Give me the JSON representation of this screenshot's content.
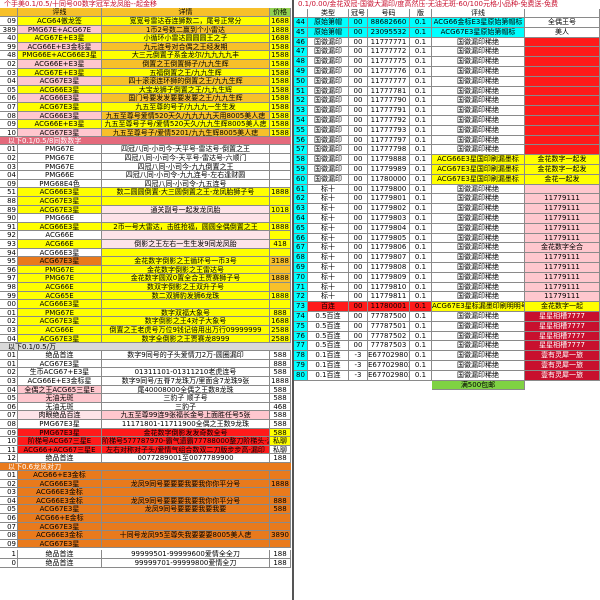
{
  "colors": {
    "yellow": "#ffff00",
    "gold": "#f7c02a",
    "orange": "#e97a1c",
    "pink": "#ffc7ce",
    "rose": "#e46a7c",
    "red": "#ff1a1a",
    "darkred": "#c8102e",
    "green": "#7fd243",
    "header_green": "#92d050",
    "cyan": "#00ffff",
    "blue": "#5b9bd5",
    "gray": "#d9d9d9",
    "white": "#ffffff",
    "pale_pink": "#fde3e8",
    "light_orange": "#f9cb9c"
  },
  "left": {
    "title": "个手美0.1/0.5/十同号00数字冠军龙凤胎--起金移",
    "header": {
      "id": "",
      "name": "评线",
      "desc": "详情",
      "price": "价格"
    },
    "rows": [
      [
        "09",
        "ACG64傲龙签",
        "宽宽号雷达吞连狮数二，尾号正常分",
        "1688"
      ],
      [
        "389",
        "PMG67E+ACG67E",
        "1币2号数二赢到个小雷达",
        "1888"
      ],
      [
        "40",
        "ACG67E+E3星",
        "小循环小雷达圆圆圆王之子",
        "1688"
      ],
      [
        "99",
        "ACG66E+E3金标星",
        "九元连号对合偶之王经发期",
        "1588"
      ],
      [
        "48",
        "PMG66E+ACG66E3星",
        "大三元倒置子系金龙尔/九九九九丰",
        "1588"
      ],
      [
        "02",
        "ACG66E+E3星",
        "倒置之王倒置狮子/九九生辉",
        "1588"
      ],
      [
        "03",
        "ACG67E+E3星",
        "五福倒置之王/九九生辉",
        "1588"
      ],
      [
        "04",
        "ACG67E3星",
        "四十滚滚连环狮的倒置之王/九九生辉",
        "1588"
      ],
      [
        "05",
        "ACG66E3星",
        "大宝龙狮子倒置之王/九九生辉",
        "1588"
      ],
      [
        "06",
        "ACG66E3星",
        "国门号要发发要要发要之王/九九生辉",
        "1588"
      ],
      [
        "07",
        "ACG67E3星",
        "九五至尊的号子/九九九一生生发",
        "1588"
      ],
      [
        "08",
        "ACG66E3星",
        "九五至尊号爱情520天久/九九九九天用8005美人痣",
        "1588"
      ],
      [
        "09",
        "ACG66E+E3星",
        "九五至尊号子号/爱情520天久/九九生辉8005美人痣",
        "1588"
      ],
      [
        "10",
        "ACG67E3星",
        "九五至尊号子/爱情5201/九九生辉8005美人痣",
        "1588"
      ]
    ],
    "section1": "以下0.1/0.5/8同数数字",
    "rows2": [
      [
        "01",
        "PMG67E",
        "四冠八同-小司今-天平号-雷达号-倒置之王",
        ""
      ],
      [
        "02",
        "PMG67E",
        "四冠八同-小司今-天平号-雷达号-六顺门",
        ""
      ],
      [
        "03",
        "PMG67E",
        "四冠八同-小司今-九九倒置之王",
        ""
      ],
      [
        "04",
        "PMG66E",
        "四冠八同-小司令-九九连号-左右逢财圆",
        ""
      ],
      [
        "09",
        "PMG68E4色",
        "四冠八同-小司令-九五连号",
        ""
      ],
      [
        "51",
        "ACG66E3星",
        "数二圆圆倒置·大三圆倒置之王-龙凤胎狮子号",
        "1888"
      ],
      [
        "88",
        "ACG67E3星",
        "",
        ""
      ],
      [
        "89",
        "ACG67E3星",
        "通关副号一起发龙凤胎",
        "1018"
      ],
      [
        "90",
        "PMG66E",
        "",
        ""
      ],
      [
        "91",
        "ACG66E3星",
        "2币一号大雷达，击胜抢福，圆圆全偶倒置之王",
        "1888"
      ],
      [
        "92",
        "ACG66E",
        "",
        ""
      ],
      [
        "93",
        "ACG66E",
        "倒影之王左右一生生发9同龙凤胎",
        "418"
      ],
      [
        "94",
        "ACG66E3星",
        "",
        ""
      ],
      [
        "95",
        "ACG67E3星",
        "金花数字倒影之王循环号一币3号",
        "3188"
      ],
      [
        "96",
        "PMG67E",
        "金花数字倒影之王雷达号",
        ""
      ],
      [
        "97",
        "PMG67E",
        "金花数字圆双0置全合王贾赛狮子号",
        "1888"
      ],
      [
        "98",
        "ACG66E",
        "数双字倒影之王双升子号",
        ""
      ],
      [
        "99",
        "ACG65E",
        "数二双狮豹发狮6龙珠",
        "1888"
      ],
      [
        "00",
        "ACG66E3星",
        "",
        ""
      ],
      [
        "01",
        "PMG67E",
        "数字双福大象号",
        "888"
      ],
      [
        "02",
        "ACG67E3星",
        "数字倒影之王4对子大象号",
        "1688"
      ],
      [
        "03",
        "ACG66E",
        "倒置之王老虎号万位9钱记倍用出万行09999999",
        "2588"
      ],
      [
        "04",
        "ACG67E3星",
        "数字全倒影之王贾赛龙8999",
        "2588"
      ]
    ],
    "section2": "以下0.1/0.5/万",
    "rows3": [
      [
        "01",
        "绝品首连",
        "数字9同号的子头爱情刀2万-圆圈漏印",
        "588"
      ],
      [
        "01",
        "ACG67E3星",
        "",
        "888"
      ],
      [
        "02",
        "生币ACG67+E3星",
        "01311101-01311210老虎连号",
        "588"
      ],
      [
        "03",
        "ACG66E+E3金标星",
        "数字9同号/五脊7龙珠万/里面含7龙珠9张",
        "1888"
      ],
      [
        "04",
        "全偶之王ACG65三星E",
        "尾40008000全偶之王数8龙珠",
        "588"
      ],
      [
        "05",
        "无油无斑",
        "三豹子  顺子号",
        "588"
      ],
      [
        "06",
        "无油无斑",
        "三豹子",
        "468"
      ],
      [
        "07",
        "肉眼绝品百连",
        "九五至尊99连9张福长金号上面胜任号5张",
        "588"
      ],
      [
        "08",
        "PMG67E3星",
        "11171801-11711900全偶之王数9龙珠",
        "588"
      ],
      [
        "09",
        "PMG67E3星",
        "金花数字倒影发发奇数全号",
        "588"
      ],
      [
        "10",
        "阶梯号ACG67三星E",
        "阶梯号577787970-霸气遗霸77788000整刀阶梯头-漏印",
        "私聊"
      ],
      [
        "11",
        "ACG66+ACG67三星E",
        "左右对称对子头/爱情气组合数双二刀版步步高-漏印",
        "私聊"
      ],
      [
        "12",
        "绝品首连",
        "0077289001至0077789900",
        "188"
      ]
    ],
    "section3": "以下0.6龙凤对刀",
    "rows4": [
      [
        "01",
        "ACG66+E3金标",
        "",
        ""
      ],
      [
        "02",
        "ACG66E3星",
        "龙凤9同号要要要我要我你你平分号",
        "1888"
      ],
      [
        "03",
        "ACG66E3金标",
        "",
        ""
      ],
      [
        "04",
        "ACG66E3金标",
        "龙凤9同号要要要我要我你你平分号",
        "888"
      ],
      [
        "05",
        "ACG67E3星",
        "龙凤9同号要要要我要我要",
        "588"
      ],
      [
        "06",
        "ACG66+E金标",
        "",
        ""
      ],
      [
        "07",
        "ACG67E3星",
        "",
        ""
      ],
      [
        "08",
        "ACG66E3金标",
        "十同号龙凤95至尊失我要要要8005美人痣",
        "3890"
      ],
      [
        "09",
        "ACG67E3星",
        "",
        ""
      ]
    ],
    "footer": [
      [
        "1",
        "绝品首连",
        "99999501-99999600爱情全全刀",
        "188"
      ],
      [
        "0",
        "绝品首连",
        "99999701-99999800爱情全刀",
        "188"
      ]
    ]
  },
  "right": {
    "banner": "0.1/0.00/金花双冠-国徽大漏印/度高然压-无油无斑-60/100元格小品种-免费送-免费",
    "header": {
      "n": "",
      "type": "类型",
      "count": "冠号",
      "serial": "号码",
      "ver": "版",
      "rating": "评线",
      "note": ""
    },
    "rows": [
      [
        "44",
        "原始第帽",
        "00",
        "88682660",
        "0.1",
        "ACG66金标E3星原始第帽标",
        "全偶王号"
      ],
      [
        "45",
        "原始第帽",
        "00",
        "23095532",
        "0.1",
        "ACG67E3星原始第帽标",
        "美人"
      ],
      [
        "46",
        "国徽漏印",
        "00",
        "11777771",
        "0.1",
        "国徽漏印稀绝",
        ""
      ],
      [
        "47",
        "国徽漏印",
        "00",
        "11777772",
        "0.1",
        "国徽漏印稀绝",
        ""
      ],
      [
        "48",
        "国徽漏印",
        "00",
        "11777775",
        "0.1",
        "国徽漏印稀绝",
        ""
      ],
      [
        "49",
        "国徽漏印",
        "00",
        "11777776",
        "0.1",
        "国徽漏印稀绝",
        ""
      ],
      [
        "50",
        "国徽漏印",
        "00",
        "11777777",
        "0.1",
        "国徽漏印稀绝",
        ""
      ],
      [
        "51",
        "国徽漏印",
        "00",
        "11777781",
        "0.1",
        "国徽漏印稀绝",
        ""
      ],
      [
        "52",
        "国徽漏印",
        "00",
        "11777790",
        "0.1",
        "国徽漏印稀绝",
        ""
      ],
      [
        "53",
        "国徽漏印",
        "00",
        "11777791",
        "0.1",
        "国徽漏印稀绝",
        ""
      ],
      [
        "54",
        "国徽漏印",
        "00",
        "11777792",
        "0.1",
        "国徽漏印稀绝",
        ""
      ],
      [
        "55",
        "国徽漏印",
        "00",
        "11777793",
        "0.1",
        "国徽漏印稀绝",
        ""
      ],
      [
        "56",
        "国徽漏印",
        "00",
        "11777797",
        "0.1",
        "国徽漏印稀绝",
        ""
      ],
      [
        "57",
        "国徽漏印",
        "00",
        "11777798",
        "0.1",
        "国徽漏印稀绝",
        ""
      ],
      [
        "58",
        "国徽漏印",
        "00",
        "11779888",
        "0.1",
        "ACG66E3星国印刷漏墨标",
        "金花数字一起发"
      ],
      [
        "59",
        "国徽漏印",
        "00",
        "11779989",
        "0.1",
        "ACG67E3星国印刷漏墨标",
        "金花数字一起发"
      ],
      [
        "60",
        "国徽漏印",
        "00",
        "11780000",
        "0.1",
        "ACG67E3星国印刷漏墨标",
        "金花一起发"
      ],
      [
        "61",
        "标十",
        "00",
        "11779800",
        "0.1",
        "国徽漏印稀绝",
        ""
      ],
      [
        "62",
        "标十",
        "00",
        "11779801",
        "0.1",
        "国徽漏印稀绝",
        "11779111"
      ],
      [
        "63",
        "标十",
        "00",
        "11779802",
        "0.1",
        "国徽漏印稀绝",
        "11779111"
      ],
      [
        "64",
        "标十",
        "00",
        "11779803",
        "0.1",
        "国徽漏印稀绝",
        "11779111"
      ],
      [
        "65",
        "标十",
        "00",
        "11779804",
        "0.1",
        "国徽漏印稀绝",
        "11779111"
      ],
      [
        "66",
        "标十",
        "00",
        "11779805",
        "0.1",
        "国徽漏印稀绝",
        "11779111"
      ],
      [
        "67",
        "标十",
        "00",
        "11779806",
        "0.1",
        "国徽漏印稀绝",
        "金花数字全合"
      ],
      [
        "68",
        "标十",
        "00",
        "11779807",
        "0.1",
        "国徽漏印稀绝",
        "11779111"
      ],
      [
        "69",
        "标十",
        "00",
        "11779808",
        "0.1",
        "国徽漏印稀绝",
        "11779111"
      ],
      [
        "70",
        "标十",
        "00",
        "11779809",
        "0.1",
        "国徽漏印稀绝",
        "11779111"
      ],
      [
        "71",
        "标十",
        "00",
        "11779810",
        "0.1",
        "国徽漏印稀绝",
        "11779111"
      ],
      [
        "72",
        "标十",
        "00",
        "11779811",
        "0.1",
        "国徽漏印稀绝",
        "11779111"
      ],
      [
        "73",
        "百连",
        "00",
        "11780001",
        "0.1",
        "ACG67E3星标漏墨印刷明明号",
        "金花数字一起"
      ],
      [
        "74",
        "0.5百连",
        "00",
        "77787500",
        "0.1",
        "国徽漏印稀绝",
        "星星相槽7777"
      ],
      [
        "75",
        "0.5百连",
        "00",
        "77787501",
        "0.1",
        "国徽漏印稀绝",
        "星星相槽7777"
      ],
      [
        "76",
        "0.5百连",
        "00",
        "77787502",
        "0.1",
        "国徽漏印稀绝",
        "星星相槽7777"
      ],
      [
        "77",
        "0.5百连",
        "00",
        "77787503",
        "0.1",
        "国徽漏印稀绝",
        "星星相槽7777"
      ],
      [
        "78",
        "0.1百连",
        "-3",
        "E677029801",
        "0.1",
        "国徽漏印稀绝",
        "壹有灵犀一旅"
      ],
      [
        "79",
        "0.1百连",
        "-3",
        "E677029802",
        "0.1",
        "国徽漏印稀绝",
        "壹有灵犀一旅"
      ],
      [
        "80",
        "0.1百连",
        "-3",
        "E677029803",
        "0.1",
        "国徽漏印稀绝",
        "壹有灵犀一旅"
      ]
    ],
    "footer_note": "满500包邮"
  }
}
